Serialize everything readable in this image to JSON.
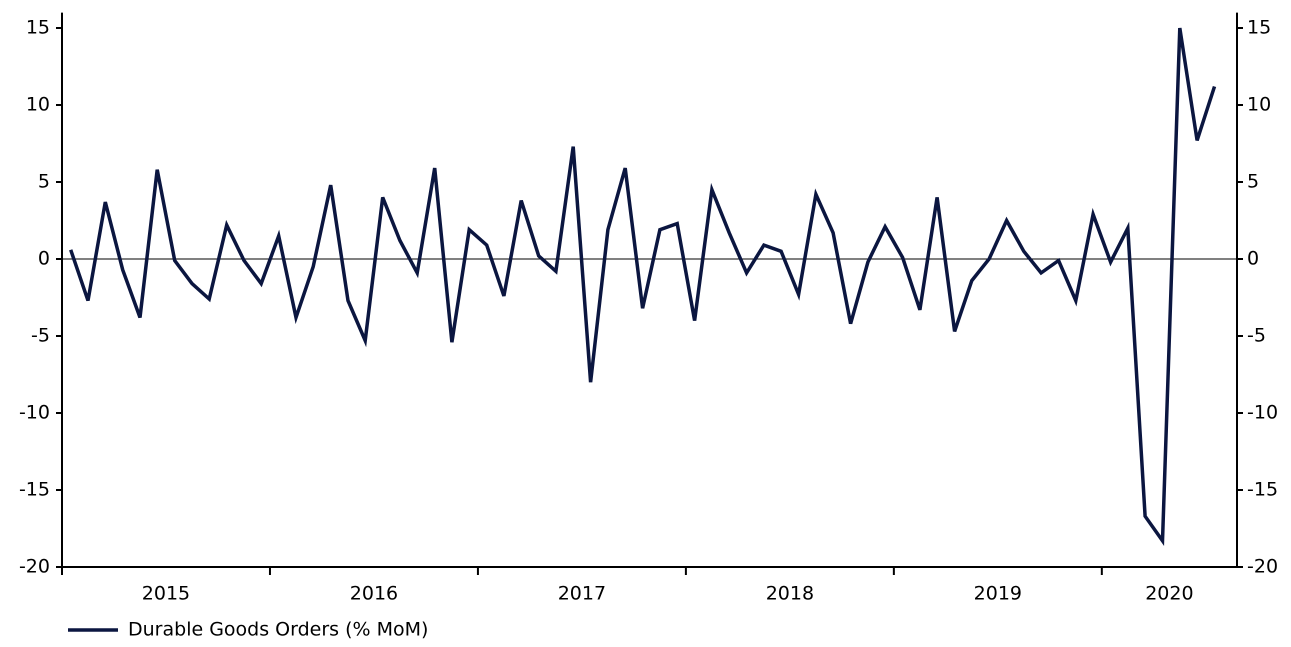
{
  "chart_data": {
    "type": "line",
    "x": [
      2015.042,
      2015.125,
      2015.208,
      2015.292,
      2015.375,
      2015.458,
      2015.542,
      2015.625,
      2015.708,
      2015.792,
      2015.875,
      2015.958,
      2016.042,
      2016.125,
      2016.208,
      2016.292,
      2016.375,
      2016.458,
      2016.542,
      2016.625,
      2016.708,
      2016.792,
      2016.875,
      2016.958,
      2017.042,
      2017.125,
      2017.208,
      2017.292,
      2017.375,
      2017.458,
      2017.542,
      2017.625,
      2017.708,
      2017.792,
      2017.875,
      2017.958,
      2018.042,
      2018.125,
      2018.208,
      2018.292,
      2018.375,
      2018.458,
      2018.542,
      2018.625,
      2018.708,
      2018.792,
      2018.875,
      2018.958,
      2019.042,
      2019.125,
      2019.208,
      2019.292,
      2019.375,
      2019.458,
      2019.542,
      2019.625,
      2019.708,
      2019.792,
      2019.875,
      2019.958,
      2020.042,
      2020.125,
      2020.208,
      2020.292,
      2020.375,
      2020.458,
      2020.542
    ],
    "series": [
      {
        "name": "Durable Goods Orders (% MoM)",
        "color": "#0b1640",
        "values": [
          0.6,
          -2.7,
          3.7,
          -0.7,
          -3.8,
          5.8,
          -0.1,
          -1.6,
          -2.6,
          2.2,
          -0.1,
          -1.6,
          1.5,
          -3.8,
          -0.5,
          4.8,
          -2.7,
          -5.3,
          4.0,
          1.2,
          -0.9,
          5.9,
          -5.4,
          1.9,
          0.9,
          -2.4,
          3.8,
          0.2,
          -0.8,
          7.3,
          -8.0,
          1.9,
          5.9,
          -3.2,
          1.9,
          2.3,
          -4.0,
          4.5,
          1.7,
          -0.9,
          0.9,
          0.5,
          -2.3,
          4.2,
          1.7,
          -4.2,
          -0.2,
          2.1,
          0.1,
          -3.3,
          4.0,
          -4.7,
          -1.4,
          0.0,
          2.5,
          0.5,
          -0.9,
          -0.1,
          -2.7,
          2.9,
          -0.2,
          2.0,
          -16.7,
          -18.3,
          15.0,
          7.7,
          11.2
        ]
      }
    ],
    "xlim": [
      2015,
      2020.65
    ],
    "xticks": [
      2015,
      2016,
      2017,
      2018,
      2019,
      2020
    ],
    "ylim": [
      -20,
      16
    ],
    "yticks": [
      -20,
      -15,
      -10,
      -5,
      0,
      5,
      10,
      15
    ],
    "y2lim": [
      -20,
      16
    ],
    "y2ticks": [
      -20,
      -15,
      -10,
      -5,
      0,
      5,
      10,
      15
    ],
    "legend": "bottom-left"
  }
}
